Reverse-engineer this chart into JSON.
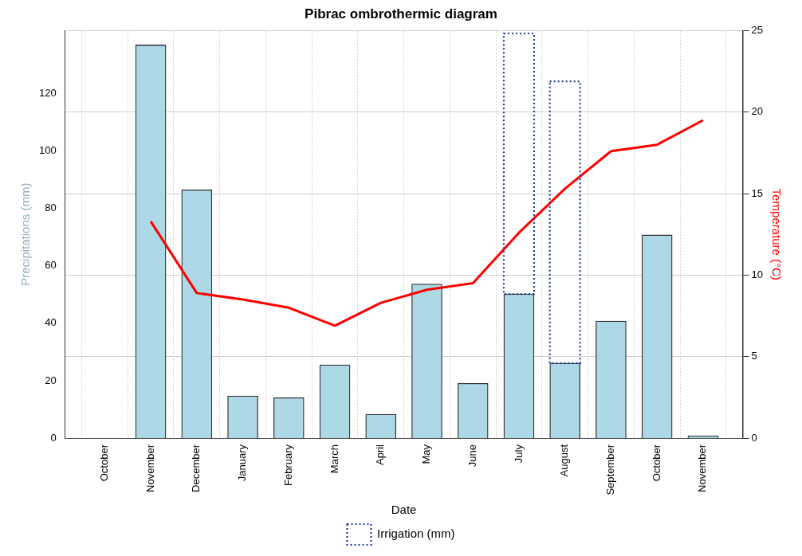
{
  "chart_data": {
    "type": "bar",
    "title": "Pibrac ombrothermic diagram",
    "xlabel": "Date",
    "ylabel": "Precipitations (mm)",
    "y2label": "Temperature (°C)",
    "categories": [
      "October",
      "November",
      "December",
      "January",
      "February",
      "March",
      "April",
      "May",
      "June",
      "July",
      "August",
      "September",
      "October",
      "November"
    ],
    "stacked": true,
    "series": [
      {
        "color": "#add8e6",
        "values": [
          0,
          137.0,
          86.5,
          14.7,
          14.1,
          25.5,
          8.3,
          53.7,
          19.1,
          50.2,
          26.1,
          40.8,
          70.8,
          0.8
        ]
      },
      {
        "name": "Irrigation (mm)",
        "color": "#1f3f8f",
        "line_style": "dotted",
        "values": [
          null,
          null,
          null,
          null,
          null,
          null,
          null,
          null,
          null,
          90.8,
          98.2,
          null,
          null,
          null
        ]
      },
      {
        "type": "line",
        "axis": "y2",
        "color": "#ff0000",
        "marker": "none",
        "values": [
          null,
          13.3,
          8.9,
          8.5,
          8.0,
          6.9,
          8.3,
          9.1,
          9.5,
          12.6,
          15.3,
          17.6,
          18.0,
          19.5
        ]
      }
    ],
    "ylim": [
      0,
      142
    ],
    "yticks": [
      0,
      20,
      40,
      60,
      80,
      100,
      120
    ],
    "y2lim": [
      0,
      25
    ],
    "y2ticks": [
      0,
      5,
      10,
      15,
      20,
      25
    ],
    "grid": true,
    "legend": "bottom"
  }
}
